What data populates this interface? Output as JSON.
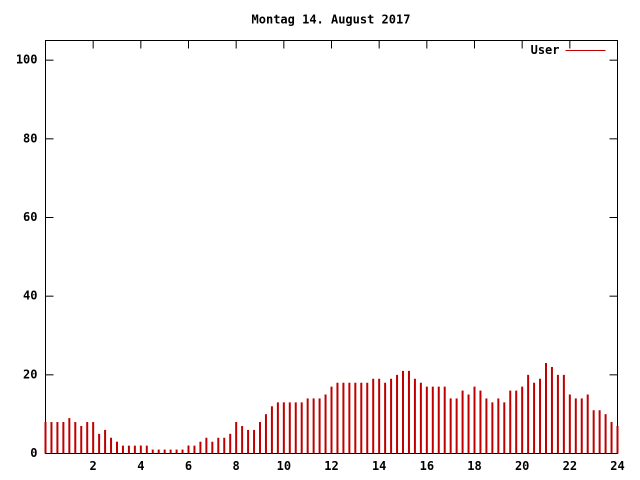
{
  "chart_data": {
    "type": "impulses",
    "title": "Montag 14. August 2017",
    "x": [
      0,
      0.25,
      0.5,
      0.75,
      1,
      1.25,
      1.5,
      1.75,
      2,
      2.25,
      2.5,
      2.75,
      3,
      3.25,
      3.5,
      3.75,
      4,
      4.25,
      4.5,
      4.75,
      5,
      5.25,
      5.5,
      5.75,
      6,
      6.25,
      6.5,
      6.75,
      7,
      7.25,
      7.5,
      7.75,
      8,
      8.25,
      8.5,
      8.75,
      9,
      9.25,
      9.5,
      9.75,
      10,
      10.25,
      10.5,
      10.75,
      11,
      11.25,
      11.5,
      11.75,
      12,
      12.25,
      12.5,
      12.75,
      13,
      13.25,
      13.5,
      13.75,
      14,
      14.25,
      14.5,
      14.75,
      15,
      15.25,
      15.5,
      15.75,
      16,
      16.25,
      16.5,
      16.75,
      17,
      17.25,
      17.5,
      17.75,
      18,
      18.25,
      18.5,
      18.75,
      19,
      19.25,
      19.5,
      19.75,
      20,
      20.25,
      20.5,
      20.75,
      21,
      21.25,
      21.5,
      21.75,
      22,
      22.25,
      22.5,
      22.75,
      23,
      23.25,
      23.5,
      23.75,
      24
    ],
    "series": [
      {
        "name": "User",
        "color": "#c00000",
        "values": [
          8,
          8,
          8,
          8,
          9,
          8,
          7,
          8,
          8,
          5,
          6,
          4,
          3,
          2,
          2,
          2,
          2,
          2,
          1,
          1,
          1,
          1,
          1,
          1,
          2,
          2,
          3,
          4,
          3,
          4,
          4,
          5,
          8,
          7,
          6,
          6,
          8,
          10,
          12,
          13,
          13,
          13,
          13,
          13,
          14,
          14,
          14,
          15,
          17,
          18,
          18,
          18,
          18,
          18,
          18,
          19,
          19,
          18,
          19,
          20,
          21,
          21,
          19,
          18,
          17,
          17,
          17,
          17,
          14,
          14,
          16,
          15,
          17,
          16,
          14,
          13,
          14,
          13,
          16,
          16,
          17,
          20,
          18,
          19,
          23,
          22,
          20,
          20,
          15,
          14,
          14,
          15,
          11,
          11,
          10,
          8,
          7
        ]
      }
    ],
    "xlim": [
      0,
      24
    ],
    "xticks": [
      2,
      4,
      6,
      8,
      10,
      12,
      14,
      16,
      18,
      20,
      22,
      24
    ],
    "ylim": [
      0,
      105
    ],
    "yticks": [
      0,
      20,
      40,
      60,
      80,
      100
    ],
    "legend": "top-right"
  }
}
